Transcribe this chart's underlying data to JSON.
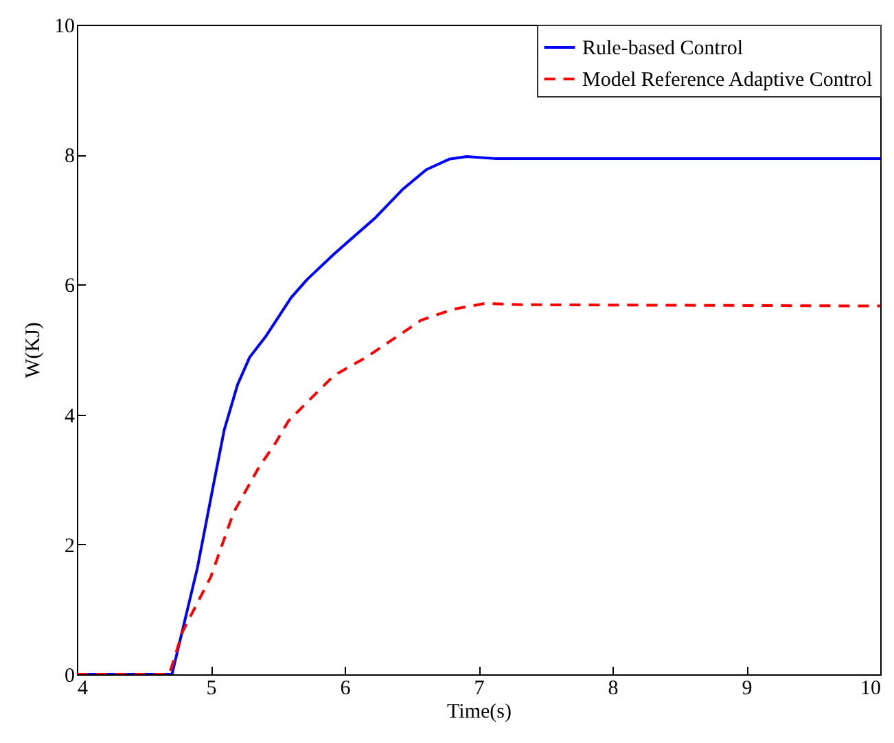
{
  "chart_data": {
    "type": "line",
    "xlabel": "Time(s)",
    "ylabel": "W(KJ)",
    "xlim": [
      4,
      10
    ],
    "xticks": [
      4,
      5,
      6,
      7,
      8,
      9,
      10
    ],
    "ylim": [
      0,
      10
    ],
    "yticks": [
      0,
      2,
      4,
      6,
      8,
      10
    ],
    "legend": "top right",
    "series": [
      {
        "name": "Rule-based Control",
        "color": "#0000ff",
        "line_style": "solid",
        "x": [
          4,
          4.71,
          4.9,
          5.02,
          5.1,
          5.2,
          5.29,
          5.41,
          5.6,
          5.72,
          5.92,
          6.23,
          6.43,
          6.61,
          6.78,
          6.91,
          7.12,
          10
        ],
        "values": [
          0,
          0,
          1.64,
          2.92,
          3.76,
          4.46,
          4.88,
          5.2,
          5.8,
          6.08,
          6.47,
          7.03,
          7.46,
          7.77,
          7.93,
          7.97,
          7.94,
          7.94
        ]
      },
      {
        "name": "Model Reference Adaptive Control",
        "color": "#ff0000",
        "line_style": "dashed",
        "x": [
          4,
          4.69,
          4.79,
          5.0,
          5.17,
          5.36,
          5.48,
          5.58,
          5.75,
          5.92,
          6.16,
          6.37,
          6.57,
          6.81,
          7.05,
          7.32,
          10
        ],
        "values": [
          0,
          0,
          0.66,
          1.5,
          2.49,
          3.19,
          3.55,
          3.9,
          4.25,
          4.6,
          4.88,
          5.17,
          5.45,
          5.62,
          5.71,
          5.69,
          5.67
        ]
      }
    ]
  }
}
